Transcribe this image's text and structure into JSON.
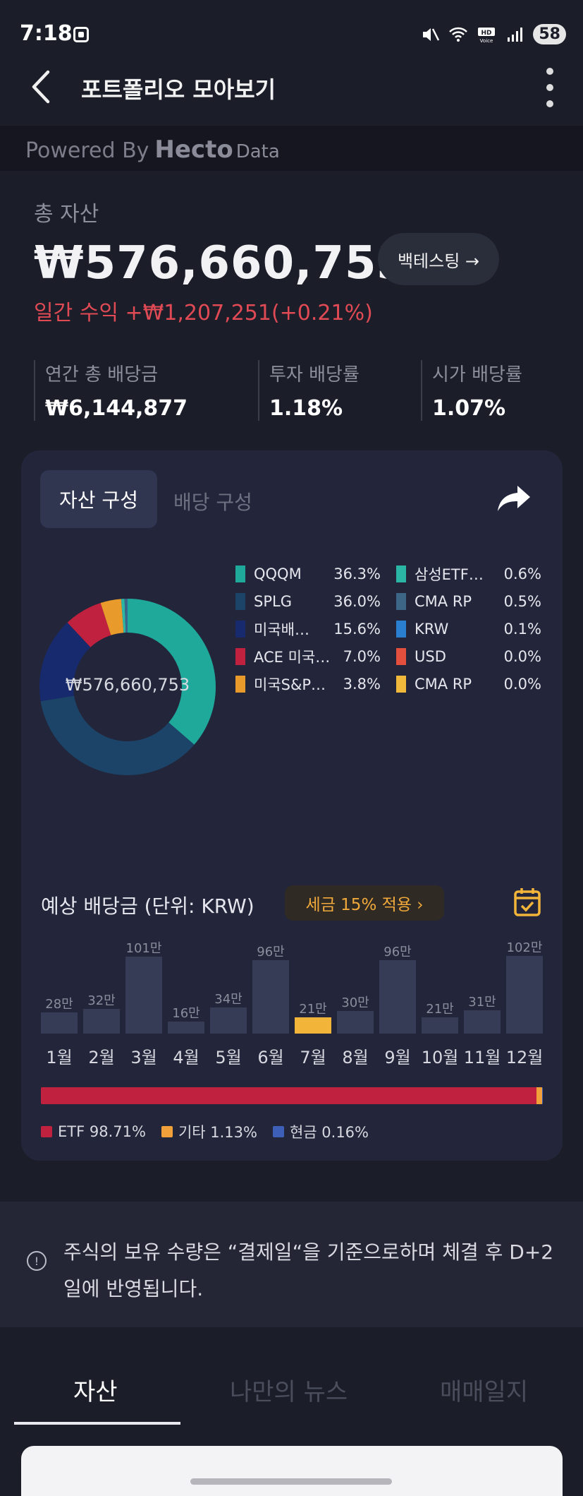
{
  "status_bar": {
    "time": "7:18",
    "battery": "58",
    "icons": [
      "app-icon",
      "mute-icon",
      "wifi-icon",
      "hd-voice-icon",
      "signal-icon"
    ]
  },
  "header": {
    "title": "포트폴리오 모아보기",
    "back_icon": "chevron-left-icon",
    "menu_icon": "kebab-menu-icon"
  },
  "powered": {
    "prefix": "Powered By",
    "brand": "Hecto",
    "suffix": "Data"
  },
  "summary": {
    "total_label": "총 자산",
    "total_value": "₩576,660,753",
    "backtest_label": "백테스팅 →",
    "daily_profit": "일간 수익 +₩1,207,251(+0.21%)"
  },
  "metrics": [
    {
      "label": "연간 총 배당금",
      "value": "₩6,144,877"
    },
    {
      "label": "투자 배당률",
      "value": "1.18%"
    },
    {
      "label": "시가 배당률",
      "value": "1.07%"
    }
  ],
  "tabs": {
    "asset": "자산 구성",
    "dividend": "배당 구성"
  },
  "donut_center": "₩576,660,753",
  "holdings": [
    {
      "name": "QQQM",
      "pct": "36.3%",
      "value": 36.3,
      "color": "#1fa99b"
    },
    {
      "name": "SPLG",
      "pct": "36.0%",
      "value": 36.0,
      "color": "#1b4468"
    },
    {
      "name": "미국배…",
      "pct": "15.6%",
      "value": 15.6,
      "color": "#182a6e"
    },
    {
      "name": "ACE 미국…",
      "pct": "7.0%",
      "value": 7.0,
      "color": "#c0213e"
    },
    {
      "name": "미국S&P…",
      "pct": "3.8%",
      "value": 3.8,
      "color": "#e89a2a"
    },
    {
      "name": "삼성ETF…",
      "pct": "0.6%",
      "value": 0.6,
      "color": "#2bb5a4"
    },
    {
      "name": "CMA RP",
      "pct": "0.5%",
      "value": 0.5,
      "color": "#3c6586"
    },
    {
      "name": "KRW",
      "pct": "0.1%",
      "value": 0.1,
      "color": "#2a7fd0"
    },
    {
      "name": "USD",
      "pct": "0.0%",
      "value": 0.0,
      "color": "#e2503d"
    },
    {
      "name": "CMA RP",
      "pct": "0.0%",
      "value": 0.0,
      "color": "#f0b93c"
    }
  ],
  "dividend_section": {
    "title": "예상 배당금 (단위: KRW)",
    "tax_pill": "세금 15% 적용 ›",
    "calendar_icon": "calendar-check-icon",
    "share_icon": "share-icon"
  },
  "chart_data": {
    "type": "bar",
    "categories": [
      "1월",
      "2월",
      "3월",
      "4월",
      "5월",
      "6월",
      "7월",
      "8월",
      "9월",
      "10월",
      "11월",
      "12월"
    ],
    "values": [
      28,
      32,
      101,
      16,
      34,
      96,
      21,
      30,
      96,
      21,
      31,
      102
    ],
    "value_labels": [
      "28만",
      "32만",
      "101만",
      "16만",
      "34만",
      "96만",
      "21만",
      "30만",
      "96만",
      "21만",
      "31만",
      "102만"
    ],
    "highlight_index": 6,
    "bar_color": "#363b56",
    "highlight_color": "#f2b53a",
    "unit": "KRW"
  },
  "composition": [
    {
      "label": "ETF 98.71%",
      "value": 98.71,
      "color": "#c0213e"
    },
    {
      "label": "기타 1.13%",
      "value": 1.13,
      "color": "#f2a03a"
    },
    {
      "label": "현금 0.16%",
      "value": 0.16,
      "color": "#3d5fb8"
    }
  ],
  "notice": {
    "icon": "info-icon",
    "text": "주식의 보유 수량은 “결제일“을 기준으로하며 체결 후 D+2일에 반영됩니다."
  },
  "bottom_tabs": [
    "자산",
    "나만의 뉴스",
    "매매일지"
  ]
}
